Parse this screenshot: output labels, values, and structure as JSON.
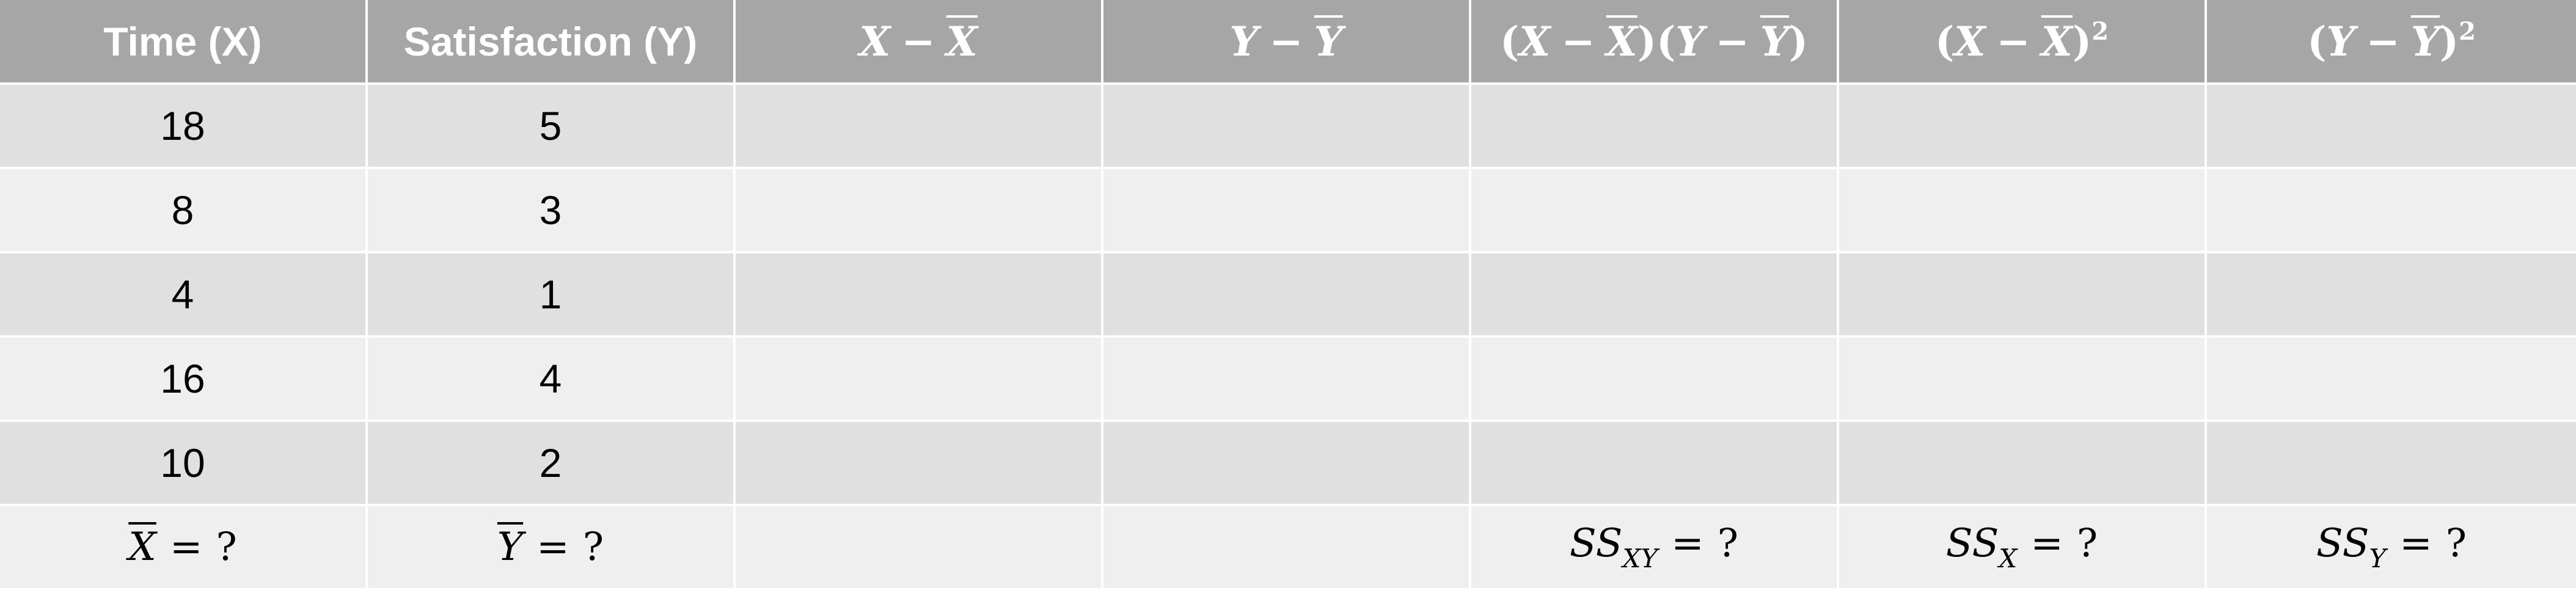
{
  "headers": {
    "time": "Time (X)",
    "satisfaction": "Satisfaction (Y)",
    "x_dev": {
      "var": "X",
      "op": "−",
      "mean": "X"
    },
    "y_dev": {
      "var": "Y",
      "op": "−",
      "mean": "Y"
    },
    "product": {
      "x": "X",
      "xbar": "X",
      "y": "Y",
      "ybar": "Y",
      "op": "−"
    },
    "x_sq": {
      "var": "X",
      "mean": "X",
      "op": "−",
      "exp": "2"
    },
    "y_sq": {
      "var": "Y",
      "mean": "Y",
      "op": "−",
      "exp": "2"
    }
  },
  "rows": [
    {
      "x": "18",
      "y": "5"
    },
    {
      "x": "8",
      "y": "3"
    },
    {
      "x": "4",
      "y": "1"
    },
    {
      "x": "16",
      "y": "4"
    },
    {
      "x": "10",
      "y": "2"
    }
  ],
  "footer": {
    "xbar": {
      "var": "X",
      "eq": "=",
      "val": "?"
    },
    "ybar": {
      "var": "Y",
      "eq": "=",
      "val": "?"
    },
    "ssxy": {
      "base": "SS",
      "sub": "XY",
      "eq": "=",
      "val": "?"
    },
    "ssx": {
      "base": "SS",
      "sub": "X",
      "eq": "=",
      "val": "?"
    },
    "ssy": {
      "base": "SS",
      "sub": "Y",
      "eq": "=",
      "val": "?"
    }
  },
  "colors": {
    "header_bg": "#a6a6a6",
    "row_dark": "#e0e0e0",
    "row_light": "#efefef",
    "grid_line": "#ffffff"
  }
}
